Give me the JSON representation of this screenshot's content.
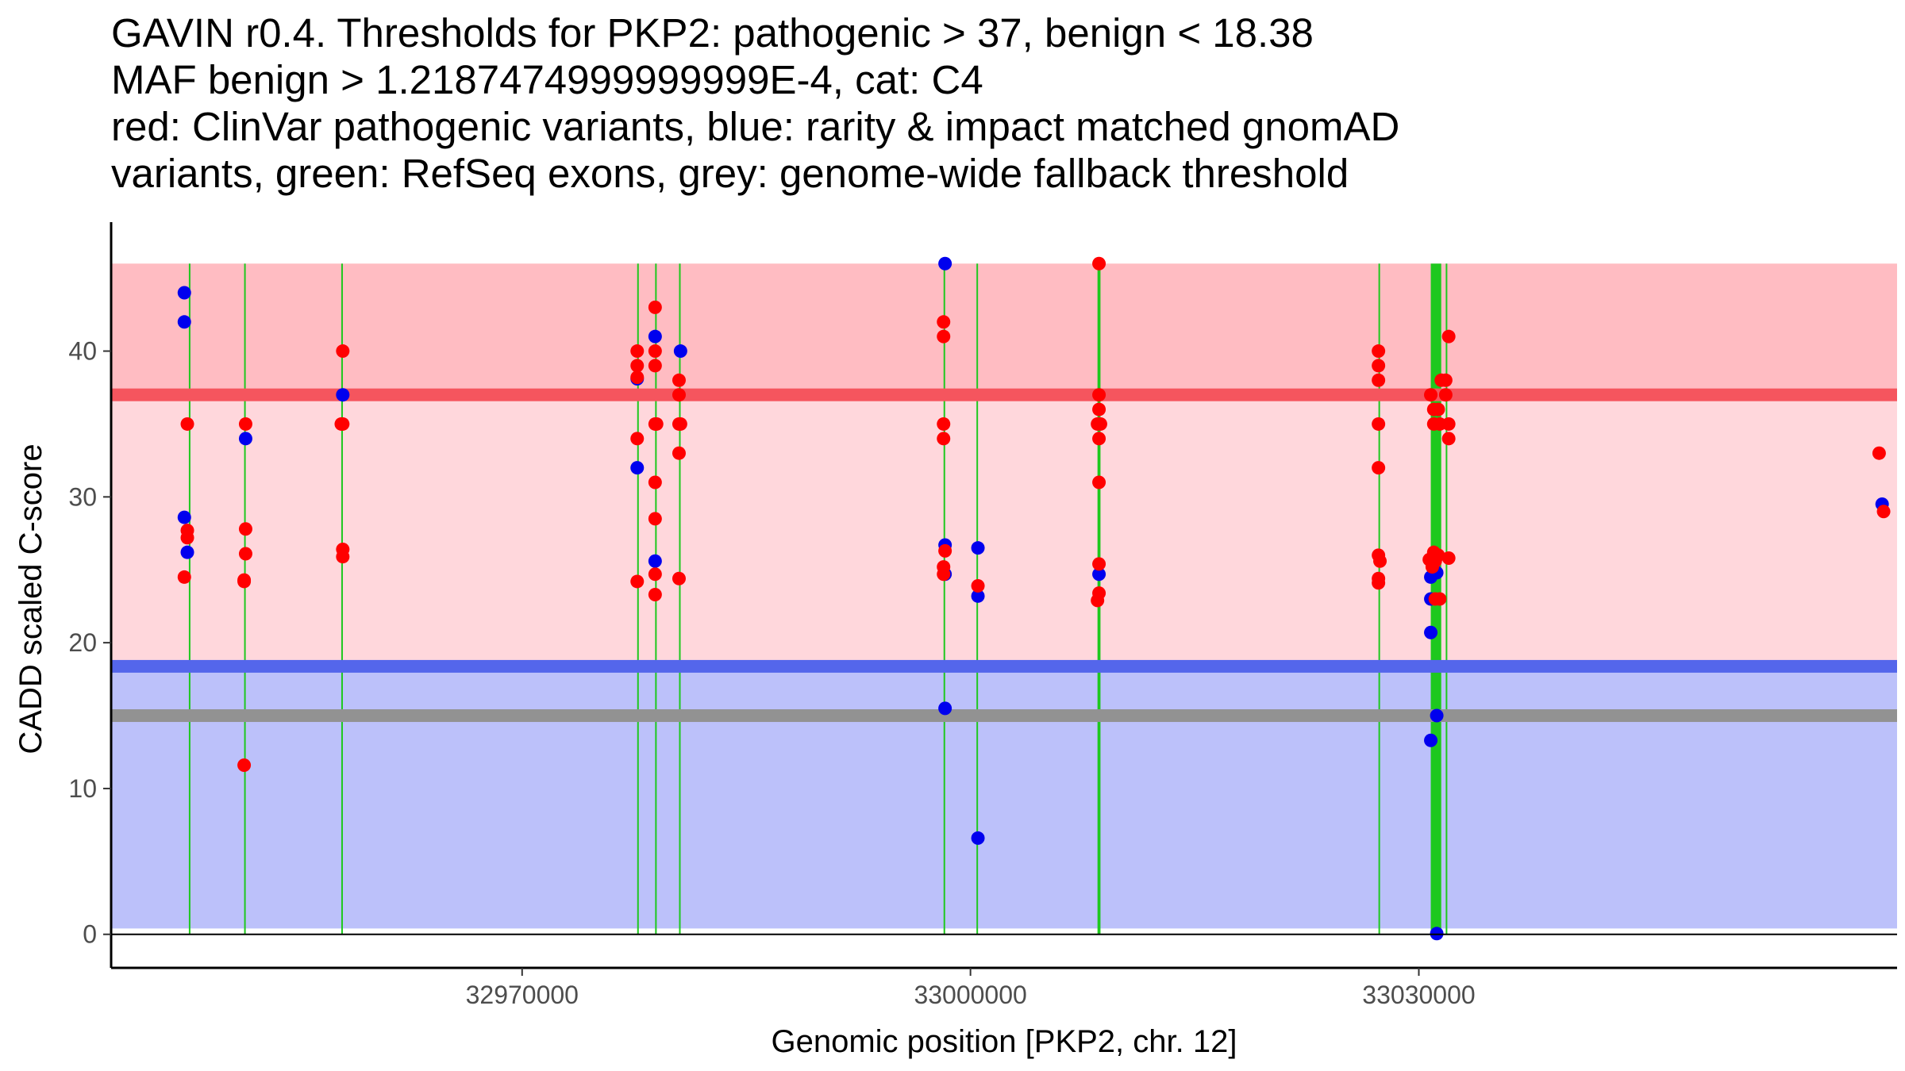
{
  "title_lines": [
    "GAVIN r0.4. Thresholds for PKP2: pathogenic > 37, benign < 18.38",
    "MAF benign > 1.2187474999999999E-4, cat: C4",
    "red: ClinVar pathogenic variants, blue: rarity & impact matched gnomAD",
    "variants, green: RefSeq exons, grey: genome-wide fallback threshold"
  ],
  "chart_data": {
    "type": "scatter",
    "title": "GAVIN r0.4. Thresholds for PKP2: pathogenic > 37, benign < 18.38",
    "xlabel": "Genomic position [PKP2, chr. 12]",
    "ylabel": "CADD scaled C-score",
    "xlim": [
      32942500,
      33062000
    ],
    "ylim": [
      -2.3,
      48.3
    ],
    "x_ticks": [
      32970000,
      33000000,
      33030000
    ],
    "x_tick_labels": [
      "32970000",
      "33000000",
      "33030000"
    ],
    "y_ticks": [
      0,
      10,
      20,
      30,
      40
    ],
    "y_tick_labels": [
      "0",
      "10",
      "20",
      "30",
      "40"
    ],
    "grid": false,
    "colors": {
      "pathogenic_zone": "#ffd7dc",
      "pathogenic_strong_zone": "#ffbcc2",
      "benign_zone": "#bcc1fa",
      "pathogenic_line": "#f5555e",
      "benign_line": "#5466eb",
      "fallback_line": "#929292",
      "exon": "#1ec81e",
      "clinvar": "#ff0000",
      "gnomad": "#0000ee"
    },
    "thresholds": {
      "pathogenic": 37,
      "benign": 18.38,
      "fallback": 15
    },
    "zones": [
      {
        "name": "benign",
        "from": 0.4,
        "to": 18.38
      },
      {
        "name": "pathogenic-mid",
        "from": 18.38,
        "to": 37
      },
      {
        "name": "pathogenic-high",
        "from": 37,
        "to": 46
      }
    ],
    "exons": [
      {
        "start": 32947700,
        "end": 32947800,
        "top": 46,
        "bottom": 0
      },
      {
        "start": 32951400,
        "end": 32951500,
        "top": 46,
        "bottom": 0
      },
      {
        "start": 32957900,
        "end": 32958000,
        "top": 46,
        "bottom": 0
      },
      {
        "start": 32977700,
        "end": 32977800,
        "top": 46,
        "bottom": 0
      },
      {
        "start": 32978900,
        "end": 32979000,
        "top": 46,
        "bottom": 0
      },
      {
        "start": 32980500,
        "end": 32980600,
        "top": 46,
        "bottom": 0
      },
      {
        "start": 32998200,
        "end": 32998300,
        "top": 46,
        "bottom": 0
      },
      {
        "start": 33000400,
        "end": 33000500,
        "top": 46,
        "bottom": 0
      },
      {
        "start": 33008500,
        "end": 33008700,
        "top": 46,
        "bottom": 0
      },
      {
        "start": 33027300,
        "end": 33027400,
        "top": 46,
        "bottom": 0
      },
      {
        "start": 33030800,
        "end": 33031500,
        "top": 46,
        "bottom": 0
      },
      {
        "start": 33031800,
        "end": 33031900,
        "top": 46,
        "bottom": 0
      }
    ],
    "series": [
      {
        "name": "gnomAD",
        "color": "#0000ee",
        "points": [
          [
            32947400,
            44
          ],
          [
            32947400,
            42
          ],
          [
            32947400,
            28.6
          ],
          [
            32947600,
            26.2
          ],
          [
            32951500,
            34
          ],
          [
            32958000,
            37
          ],
          [
            32977700,
            32
          ],
          [
            32977700,
            38.1
          ],
          [
            32978900,
            41
          ],
          [
            32978900,
            25.6
          ],
          [
            32980600,
            40
          ],
          [
            32998300,
            46
          ],
          [
            32998300,
            26.7
          ],
          [
            32998300,
            24.7
          ],
          [
            32998300,
            15.5
          ],
          [
            33000500,
            26.5
          ],
          [
            33000500,
            23.2
          ],
          [
            33000500,
            6.6
          ],
          [
            33008600,
            24.7
          ],
          [
            33030800,
            20.7
          ],
          [
            33030800,
            13.3
          ],
          [
            33030800,
            23
          ],
          [
            33030800,
            24.5
          ],
          [
            33031200,
            24.8
          ],
          [
            33031200,
            15
          ],
          [
            33031200,
            0.05
          ],
          [
            33061000,
            29.5
          ]
        ]
      },
      {
        "name": "ClinVar pathogenic",
        "color": "#ff0000",
        "points": [
          [
            32947600,
            35
          ],
          [
            32947600,
            27.7
          ],
          [
            32947600,
            27.2
          ],
          [
            32947400,
            24.5
          ],
          [
            32951500,
            35
          ],
          [
            32951500,
            27.8
          ],
          [
            32951500,
            26.1
          ],
          [
            32951400,
            24.3
          ],
          [
            32951400,
            24.2
          ],
          [
            32951400,
            11.6
          ],
          [
            32958000,
            40
          ],
          [
            32958000,
            35
          ],
          [
            32957900,
            35
          ],
          [
            32958000,
            26.4
          ],
          [
            32958000,
            25.9
          ],
          [
            32977700,
            40
          ],
          [
            32977700,
            39
          ],
          [
            32977700,
            38.2
          ],
          [
            32977700,
            34
          ],
          [
            32977700,
            24.2
          ],
          [
            32978900,
            43
          ],
          [
            32978900,
            40
          ],
          [
            32978900,
            39
          ],
          [
            32978900,
            35
          ],
          [
            32979000,
            35
          ],
          [
            32978900,
            31
          ],
          [
            32978900,
            28.5
          ],
          [
            32978900,
            24.7
          ],
          [
            32978900,
            23.3
          ],
          [
            32980500,
            38
          ],
          [
            32980500,
            37
          ],
          [
            32980500,
            35
          ],
          [
            32980600,
            35
          ],
          [
            32980500,
            33
          ],
          [
            32980500,
            24.4
          ],
          [
            32998200,
            42
          ],
          [
            32998200,
            41
          ],
          [
            32998200,
            35
          ],
          [
            32998200,
            34
          ],
          [
            32998300,
            26.3
          ],
          [
            32998200,
            25.2
          ],
          [
            32998200,
            24.7
          ],
          [
            33000500,
            23.9
          ],
          [
            33008600,
            46
          ],
          [
            33008600,
            37
          ],
          [
            33008600,
            36
          ],
          [
            33008500,
            35
          ],
          [
            33008700,
            35
          ],
          [
            33008600,
            34
          ],
          [
            33008600,
            31
          ],
          [
            33008600,
            25.4
          ],
          [
            33008600,
            23.4
          ],
          [
            33008500,
            22.9
          ],
          [
            33027300,
            40
          ],
          [
            33027300,
            39
          ],
          [
            33027300,
            38
          ],
          [
            33027300,
            35
          ],
          [
            33027300,
            32
          ],
          [
            33027300,
            26
          ],
          [
            33027400,
            25.6
          ],
          [
            33027300,
            24.4
          ],
          [
            33027300,
            24.1
          ],
          [
            33030800,
            37
          ],
          [
            33031000,
            36
          ],
          [
            33031300,
            36
          ],
          [
            33031000,
            35
          ],
          [
            33031400,
            35
          ],
          [
            33030700,
            25.7
          ],
          [
            33031000,
            26.2
          ],
          [
            33031300,
            26
          ],
          [
            33030900,
            25.2
          ],
          [
            33031100,
            25.6
          ],
          [
            33031100,
            23
          ],
          [
            33031400,
            23
          ],
          [
            33031500,
            38
          ],
          [
            33031800,
            38
          ],
          [
            33031800,
            37
          ],
          [
            33032000,
            41
          ],
          [
            33032000,
            35
          ],
          [
            33032000,
            34
          ],
          [
            33032000,
            25.8
          ],
          [
            33060800,
            33
          ],
          [
            33061100,
            29
          ]
        ]
      }
    ]
  }
}
